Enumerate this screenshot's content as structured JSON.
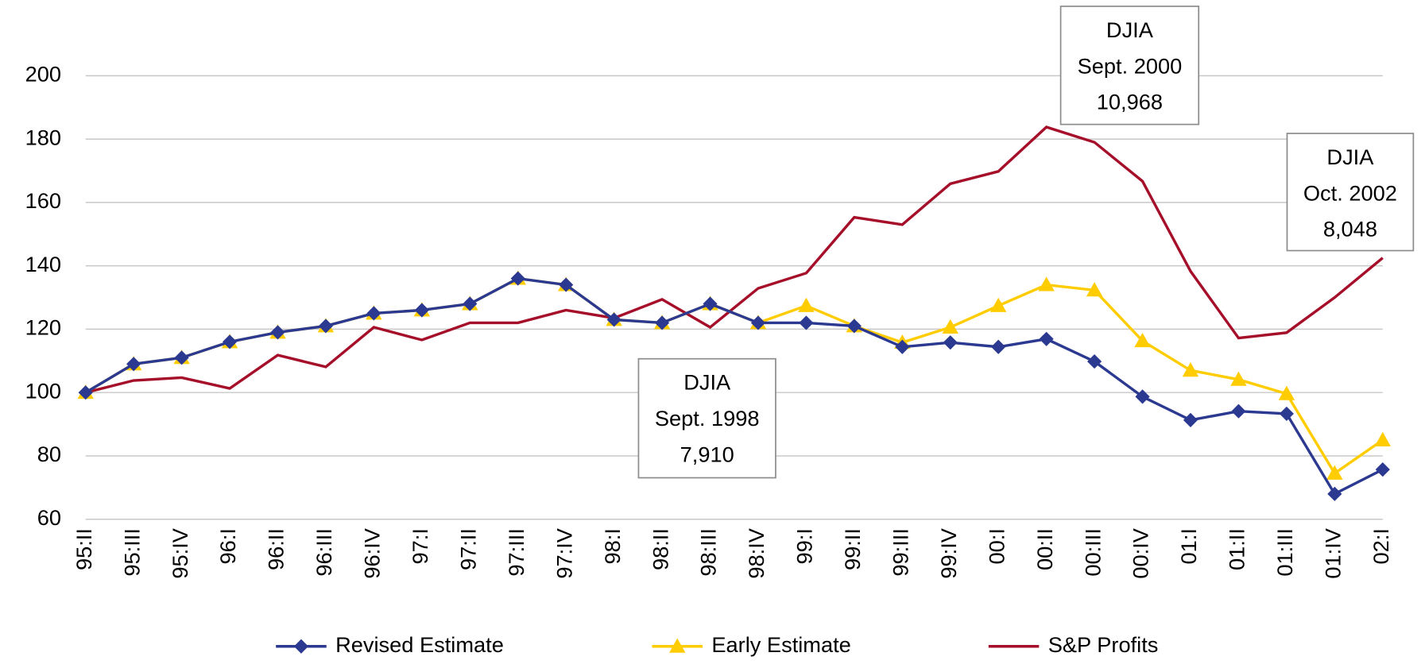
{
  "chart_data": {
    "type": "line",
    "categories": [
      "95:II",
      "95:III",
      "95:IV",
      "96:I",
      "96:II",
      "96:III",
      "96:IV",
      "97:I",
      "97:II",
      "97:III",
      "97:IV",
      "98:I",
      "98:II",
      "98:III",
      "98:IV",
      "99:I",
      "99:II",
      "99:III",
      "99:IV",
      "00:I",
      "00:II",
      "00:III",
      "00:IV",
      "01:I",
      "01:II",
      "01:III",
      "01:IV",
      "02:I"
    ],
    "ylim": [
      60,
      200
    ],
    "yticks": [
      60,
      80,
      100,
      120,
      140,
      160,
      180,
      200
    ],
    "grid": true,
    "series": [
      {
        "name": "Revised Estimate",
        "color": "#2b3990",
        "marker": "diamond",
        "values": [
          100,
          109,
          111,
          116,
          119,
          121,
          125,
          126,
          128,
          136,
          134,
          123,
          122,
          128,
          122,
          122,
          121,
          114.4,
          115.8,
          114.4,
          116.9,
          109.8,
          98.7,
          91.3,
          94.1,
          93.3,
          68,
          75.7
        ]
      },
      {
        "name": "Early Estimate",
        "color": "#ffcc00",
        "marker": "triangle",
        "values": [
          100,
          109,
          111,
          116,
          119,
          121,
          125,
          126,
          128,
          136,
          134,
          123,
          122,
          128,
          122,
          127.4,
          121,
          115.8,
          120.6,
          127.4,
          134,
          132.3,
          116.3,
          107,
          104.1,
          99.6,
          74.5,
          85
        ]
      },
      {
        "name": "S&P Profits",
        "color": "#a50f2a",
        "marker": "none",
        "values": [
          100,
          103.8,
          104.7,
          101.3,
          111.8,
          108.1,
          120.6,
          116.6,
          122,
          122,
          126,
          123.5,
          129.4,
          120.6,
          132.9,
          137.7,
          155.3,
          153,
          165.9,
          169.8,
          183.8,
          179,
          166.7,
          138.3,
          117.2,
          118.9,
          130,
          142.5
        ]
      }
    ],
    "annotations": [
      {
        "lines": [
          "DJIA",
          "Sept. 1998",
          "7,910"
        ]
      },
      {
        "lines": [
          "DJIA",
          "Sept. 2000",
          "10,968"
        ]
      },
      {
        "lines": [
          "DJIA",
          "Oct. 2002",
          "8,048"
        ]
      }
    ]
  }
}
